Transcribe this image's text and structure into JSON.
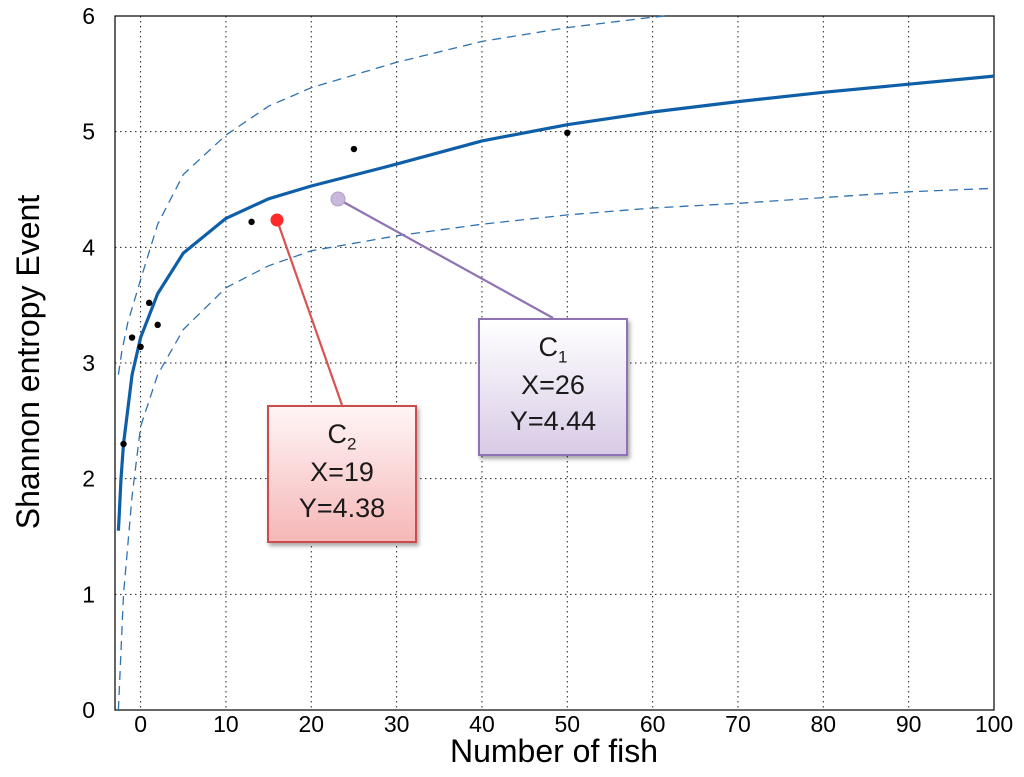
{
  "chart_data": {
    "type": "scatter",
    "xlabel": "Number of fish",
    "ylabel": "Shannon entropy Event",
    "xlim": [
      -3,
      100
    ],
    "ylim": [
      0,
      6
    ],
    "xticks": [
      0,
      10,
      20,
      30,
      40,
      50,
      60,
      70,
      80,
      90,
      100
    ],
    "yticks": [
      0,
      1,
      2,
      3,
      4,
      5,
      6
    ],
    "grid": true,
    "colors": {
      "fit": "#0f5fa8",
      "bounds": "#2f72b0",
      "points": "#000000",
      "c1": "#c8b8dc",
      "c2": "#ff2a2a"
    },
    "series": [
      {
        "kind": "points",
        "x": [
          -2,
          -1,
          0,
          1,
          2,
          13,
          25,
          50
        ],
        "y": [
          2.3,
          3.22,
          3.14,
          3.52,
          3.33,
          4.22,
          4.85,
          4.99
        ]
      },
      {
        "kind": "fit",
        "x": [
          -2.6,
          -2.5,
          -2.3,
          -2,
          -1,
          0,
          2,
          5,
          10,
          15,
          20,
          30,
          40,
          50,
          60,
          70,
          80,
          90,
          100
        ],
        "y": [
          1.55,
          1.7,
          2.0,
          2.3,
          2.9,
          3.22,
          3.6,
          3.95,
          4.25,
          4.42,
          4.53,
          4.72,
          4.92,
          5.06,
          5.17,
          5.26,
          5.34,
          5.41,
          5.48
        ]
      },
      {
        "kind": "upper",
        "x": [
          -2.6,
          -2.2,
          -1.5,
          0,
          2,
          5,
          10,
          15,
          20,
          30,
          40,
          50,
          60,
          61.5
        ],
        "y": [
          2.9,
          3.1,
          3.35,
          3.72,
          4.2,
          4.63,
          4.97,
          5.22,
          5.38,
          5.6,
          5.78,
          5.9,
          5.99,
          6.0
        ]
      },
      {
        "kind": "lower",
        "x": [
          -2.6,
          -2,
          -1,
          0,
          2,
          5,
          10,
          15,
          20,
          30,
          40,
          50,
          60,
          70,
          80,
          90,
          100
        ],
        "y": [
          0.0,
          1.0,
          1.85,
          2.45,
          2.9,
          3.29,
          3.65,
          3.84,
          3.97,
          4.1,
          4.2,
          4.28,
          4.34,
          4.38,
          4.43,
          4.48,
          4.51
        ]
      }
    ],
    "highlights": [
      {
        "id": "c1",
        "label": "C",
        "subscript": "1",
        "x_text": "X=26",
        "y_text": "Y=4.44",
        "x": 26,
        "y": 4.44
      },
      {
        "id": "c2",
        "label": "C",
        "subscript": "2",
        "x_text": "X=19",
        "y_text": "Y=4.38",
        "x": 19,
        "y": 4.38
      }
    ]
  }
}
